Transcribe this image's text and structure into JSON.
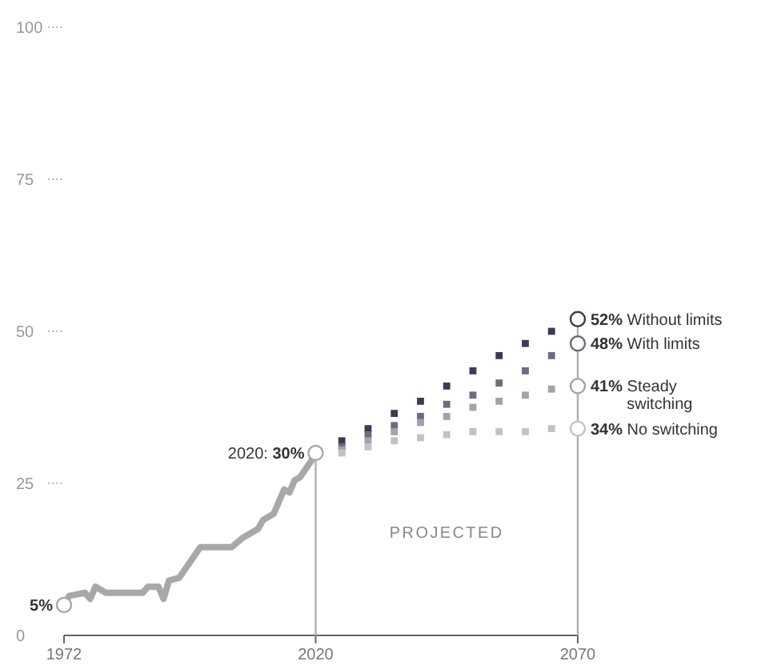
{
  "chart_data": {
    "type": "line",
    "x": [
      1972,
      1973,
      1976,
      1977,
      1978,
      1980,
      1987,
      1988,
      1990,
      1991,
      1992,
      1994,
      1998,
      2004,
      2006,
      2009,
      2010,
      2012,
      2014,
      2015,
      2016,
      2017,
      2019,
      2020
    ],
    "annotations": [
      "PROJECTED"
    ],
    "series": [
      {
        "color": "#a8a8a8",
        "values": [
          5,
          6.5,
          7,
          6,
          8,
          7,
          7,
          8,
          8,
          6,
          9,
          9.5,
          14.5,
          14.5,
          16,
          17.5,
          19,
          20,
          24,
          23.5,
          25.5,
          26,
          28.5,
          30
        ],
        "value_labels": [
          "5%",
          null,
          null,
          null,
          null,
          null,
          null,
          null,
          null,
          null,
          null,
          null,
          null,
          null,
          null,
          null,
          null,
          null,
          null,
          null,
          null,
          null,
          null,
          "2020: 30%"
        ]
      },
      {
        "type": "scatter",
        "marker": "square",
        "name": "Without limits",
        "color": "#3c3c50",
        "x": [
          2025,
          2030,
          2035,
          2040,
          2045,
          2050,
          2055,
          2060,
          2065,
          2070
        ],
        "values": [
          32,
          34,
          36.5,
          38.5,
          41,
          43.5,
          46,
          48,
          50,
          52
        ],
        "value_labels": [
          null,
          null,
          null,
          null,
          null,
          null,
          null,
          null,
          null,
          "52%"
        ]
      },
      {
        "type": "scatter",
        "marker": "square",
        "name": "With limits",
        "color": "#6c6c80",
        "x": [
          2025,
          2030,
          2035,
          2040,
          2045,
          2050,
          2055,
          2060,
          2065,
          2070
        ],
        "values": [
          31,
          33,
          34.5,
          36,
          38,
          39.5,
          41.5,
          43.5,
          46,
          48
        ],
        "value_labels": [
          null,
          null,
          null,
          null,
          null,
          null,
          null,
          null,
          null,
          "48%"
        ]
      },
      {
        "type": "scatter",
        "marker": "square",
        "name": "Steady switching",
        "color": "#a2a2a8",
        "x": [
          2025,
          2030,
          2035,
          2040,
          2045,
          2050,
          2055,
          2060,
          2065,
          2070
        ],
        "values": [
          30.5,
          32,
          33.5,
          35,
          36,
          37.5,
          38.5,
          39.5,
          40.5,
          41
        ],
        "value_labels": [
          null,
          null,
          null,
          null,
          null,
          null,
          null,
          null,
          null,
          "41%"
        ]
      },
      {
        "type": "scatter",
        "marker": "square",
        "name": "No switching",
        "color": "#c2c2c6",
        "x": [
          2025,
          2030,
          2035,
          2040,
          2045,
          2050,
          2055,
          2060,
          2065,
          2070
        ],
        "values": [
          30,
          31,
          32,
          32.5,
          33,
          33.5,
          33.5,
          33.5,
          34,
          34
        ],
        "value_labels": [
          null,
          null,
          null,
          null,
          null,
          null,
          null,
          null,
          null,
          "34%"
        ]
      }
    ],
    "ref_lines": [
      {
        "axis": "x",
        "value": 2020,
        "color": "#b0b0b0"
      },
      {
        "axis": "x",
        "value": 2070,
        "color": "#b0b0b0"
      }
    ],
    "xlim": [
      1972,
      2070
    ],
    "xticks": [
      1972,
      2020,
      2070
    ],
    "ylim": [
      0,
      100
    ],
    "yticks": [
      0,
      25,
      50,
      75,
      100
    ],
    "grid": false
  }
}
